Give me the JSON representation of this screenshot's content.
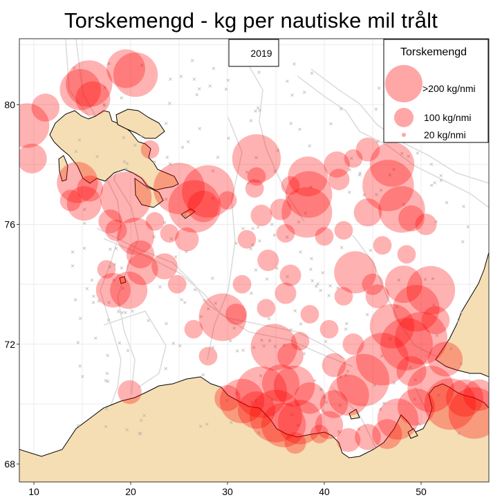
{
  "title": "Torskemengd - kg per nautiske mil trålt",
  "year_label": "2019",
  "legend": {
    "title": "Torskemengd",
    "items": [
      {
        "label": ">200 kg/nmi",
        "value": 200
      },
      {
        "label": "100 kg/nmi",
        "value": 100
      },
      {
        "label": "20 kg/nmi",
        "value": 20
      }
    ]
  },
  "colors": {
    "bubble": "#ff0000",
    "land": "#f5deb3",
    "depth_contour": "#d9d9d9",
    "grid": "#ebebeb",
    "station_marker": "#b0b0b0"
  },
  "chart_data": {
    "type": "map-bubble",
    "x_ticks": [
      "10",
      "20",
      "30",
      "40",
      "50"
    ],
    "y_ticks": [
      "68",
      "72",
      "76",
      "80"
    ],
    "xlim": [
      8.5,
      57
    ],
    "ylim": [
      67.4,
      82.2
    ],
    "points": [
      {
        "lon": 9.3,
        "lat": 79.3,
        "kgnmi": 180
      },
      {
        "lon": 11.2,
        "lat": 79.9,
        "kgnmi": 60
      },
      {
        "lon": 14.8,
        "lat": 80.5,
        "kgnmi": 150
      },
      {
        "lon": 15.7,
        "lat": 80.7,
        "kgnmi": 200
      },
      {
        "lon": 16.1,
        "lat": 80.2,
        "kgnmi": 100
      },
      {
        "lon": 19.5,
        "lat": 81.2,
        "kgnmi": 130
      },
      {
        "lon": 20.5,
        "lat": 81.0,
        "kgnmi": 180
      },
      {
        "lon": 9.8,
        "lat": 78.2,
        "kgnmi": 70
      },
      {
        "lon": 14.5,
        "lat": 77.4,
        "kgnmi": 150
      },
      {
        "lon": 15.8,
        "lat": 77.2,
        "kgnmi": 50
      },
      {
        "lon": 13.8,
        "lat": 76.8,
        "kgnmi": 30
      },
      {
        "lon": 15.2,
        "lat": 76.7,
        "kgnmi": 100
      },
      {
        "lon": 17.9,
        "lat": 76.1,
        "kgnmi": 40
      },
      {
        "lon": 19.5,
        "lat": 76.9,
        "kgnmi": 250
      },
      {
        "lon": 18.5,
        "lat": 75.8,
        "kgnmi": 30
      },
      {
        "lon": 20.5,
        "lat": 75.6,
        "kgnmi": 120
      },
      {
        "lon": 21.0,
        "lat": 75.0,
        "kgnmi": 60
      },
      {
        "lon": 21.2,
        "lat": 74.5,
        "kgnmi": 80
      },
      {
        "lon": 18.2,
        "lat": 73.8,
        "kgnmi": 100
      },
      {
        "lon": 19.8,
        "lat": 73.8,
        "kgnmi": 120
      },
      {
        "lon": 23.5,
        "lat": 74.6,
        "kgnmi": 50
      },
      {
        "lon": 25.0,
        "lat": 77.2,
        "kgnmi": 250
      },
      {
        "lon": 26.6,
        "lat": 76.6,
        "kgnmi": 280
      },
      {
        "lon": 28.0,
        "lat": 77.1,
        "kgnmi": 260
      },
      {
        "lon": 27.5,
        "lat": 76.6,
        "kgnmi": 80
      },
      {
        "lon": 25.8,
        "lat": 75.5,
        "kgnmi": 40
      },
      {
        "lon": 29.5,
        "lat": 72.9,
        "kgnmi": 210
      },
      {
        "lon": 30.9,
        "lat": 73.0,
        "kgnmi": 30
      },
      {
        "lon": 33.0,
        "lat": 78.2,
        "kgnmi": 220
      },
      {
        "lon": 33.0,
        "lat": 77.6,
        "kgnmi": 20
      },
      {
        "lon": 32.8,
        "lat": 77.2,
        "kgnmi": 20
      },
      {
        "lon": 33.5,
        "lat": 76.3,
        "kgnmi": 30
      },
      {
        "lon": 34.2,
        "lat": 74.8,
        "kgnmi": 30
      },
      {
        "lon": 35.5,
        "lat": 76.5,
        "kgnmi": 30
      },
      {
        "lon": 36.5,
        "lat": 77.3,
        "kgnmi": 20
      },
      {
        "lon": 38.4,
        "lat": 77.0,
        "kgnmi": 200
      },
      {
        "lon": 38.2,
        "lat": 76.4,
        "kgnmi": 240
      },
      {
        "lon": 38.3,
        "lat": 77.6,
        "kgnmi": 140
      },
      {
        "lon": 36.5,
        "lat": 74.3,
        "kgnmi": 30
      },
      {
        "lon": 36.0,
        "lat": 73.7,
        "kgnmi": 30
      },
      {
        "lon": 37.5,
        "lat": 72.1,
        "kgnmi": 20
      },
      {
        "lon": 41.3,
        "lat": 78.0,
        "kgnmi": 50
      },
      {
        "lon": 41.5,
        "lat": 77.5,
        "kgnmi": 30
      },
      {
        "lon": 43.0,
        "lat": 78.2,
        "kgnmi": 20
      },
      {
        "lon": 44.5,
        "lat": 78.5,
        "kgnmi": 40
      },
      {
        "lon": 46.6,
        "lat": 77.3,
        "kgnmi": 250
      },
      {
        "lon": 47.0,
        "lat": 78.0,
        "kgnmi": 180
      },
      {
        "lon": 48.0,
        "lat": 76.5,
        "kgnmi": 200
      },
      {
        "lon": 49.0,
        "lat": 76.2,
        "kgnmi": 50
      },
      {
        "lon": 50.5,
        "lat": 76.0,
        "kgnmi": 30
      },
      {
        "lon": 44.5,
        "lat": 76.4,
        "kgnmi": 60
      },
      {
        "lon": 43.2,
        "lat": 74.4,
        "kgnmi": 160
      },
      {
        "lon": 45.0,
        "lat": 74.0,
        "kgnmi": 30
      },
      {
        "lon": 45.5,
        "lat": 73.6,
        "kgnmi": 40
      },
      {
        "lon": 48.2,
        "lat": 74.0,
        "kgnmi": 120
      },
      {
        "lon": 49.5,
        "lat": 73.2,
        "kgnmi": 200
      },
      {
        "lon": 51.0,
        "lat": 73.8,
        "kgnmi": 220
      },
      {
        "lon": 51.5,
        "lat": 72.8,
        "kgnmi": 60
      },
      {
        "lon": 47.0,
        "lat": 72.6,
        "kgnmi": 180
      },
      {
        "lon": 48.5,
        "lat": 72.0,
        "kgnmi": 300
      },
      {
        "lon": 50.0,
        "lat": 72.2,
        "kgnmi": 280
      },
      {
        "lon": 46.0,
        "lat": 71.5,
        "kgnmi": 320
      },
      {
        "lon": 44.0,
        "lat": 70.8,
        "kgnmi": 320
      },
      {
        "lon": 42.5,
        "lat": 70.3,
        "kgnmi": 150
      },
      {
        "lon": 41.0,
        "lat": 71.3,
        "kgnmi": 40
      },
      {
        "lon": 41.0,
        "lat": 70.0,
        "kgnmi": 60
      },
      {
        "lon": 40.5,
        "lat": 69.3,
        "kgnmi": 60
      },
      {
        "lon": 38.5,
        "lat": 70.2,
        "kgnmi": 80
      },
      {
        "lon": 34.8,
        "lat": 71.9,
        "kgnmi": 200
      },
      {
        "lon": 36.5,
        "lat": 71.6,
        "kgnmi": 50
      },
      {
        "lon": 35.5,
        "lat": 70.7,
        "kgnmi": 120
      },
      {
        "lon": 36.9,
        "lat": 70.6,
        "kgnmi": 150
      },
      {
        "lon": 33.5,
        "lat": 70.4,
        "kgnmi": 250
      },
      {
        "lon": 31.5,
        "lat": 70.1,
        "kgnmi": 180
      },
      {
        "lon": 35.0,
        "lat": 69.6,
        "kgnmi": 300
      },
      {
        "lon": 37.5,
        "lat": 69.4,
        "kgnmi": 180
      },
      {
        "lon": 35.8,
        "lat": 69.3,
        "kgnmi": 180
      },
      {
        "lon": 33.0,
        "lat": 69.8,
        "kgnmi": 120
      },
      {
        "lon": 30.0,
        "lat": 70.2,
        "kgnmi": 50
      },
      {
        "lon": 37.0,
        "lat": 68.7,
        "kgnmi": 30
      },
      {
        "lon": 39.5,
        "lat": 69.0,
        "kgnmi": 20
      },
      {
        "lon": 42.5,
        "lat": 68.8,
        "kgnmi": 40
      },
      {
        "lon": 44.5,
        "lat": 68.9,
        "kgnmi": 50
      },
      {
        "lon": 46.5,
        "lat": 69.0,
        "kgnmi": 70
      },
      {
        "lon": 47.6,
        "lat": 69.5,
        "kgnmi": 150
      },
      {
        "lon": 51.0,
        "lat": 70.5,
        "kgnmi": 200
      },
      {
        "lon": 53.0,
        "lat": 70.0,
        "kgnmi": 250
      },
      {
        "lon": 54.5,
        "lat": 70.2,
        "kgnmi": 120
      },
      {
        "lon": 55.5,
        "lat": 69.7,
        "kgnmi": 250
      },
      {
        "lon": 56.0,
        "lat": 70.3,
        "kgnmi": 80
      },
      {
        "lon": 49.5,
        "lat": 69.9,
        "kgnmi": 120
      },
      {
        "lon": 52.5,
        "lat": 71.5,
        "kgnmi": 100
      },
      {
        "lon": 49.0,
        "lat": 71.1,
        "kgnmi": 70
      },
      {
        "lon": 19.9,
        "lat": 70.4,
        "kgnmi": 40
      },
      {
        "lon": 17.5,
        "lat": 74.5,
        "kgnmi": 20
      },
      {
        "lon": 22.5,
        "lat": 76.1,
        "kgnmi": 20
      },
      {
        "lon": 24.8,
        "lat": 74.0,
        "kgnmi": 20
      },
      {
        "lon": 26.5,
        "lat": 72.5,
        "kgnmi": 20
      },
      {
        "lon": 28.0,
        "lat": 71.6,
        "kgnmi": 20
      },
      {
        "lon": 40.0,
        "lat": 75.6,
        "kgnmi": 20
      },
      {
        "lon": 42.0,
        "lat": 75.8,
        "kgnmi": 20
      },
      {
        "lon": 31.5,
        "lat": 74.0,
        "kgnmi": 20
      },
      {
        "lon": 32.0,
        "lat": 75.5,
        "kgnmi": 20
      },
      {
        "lon": 38.5,
        "lat": 73.0,
        "kgnmi": 20
      },
      {
        "lon": 40.5,
        "lat": 72.5,
        "kgnmi": 20
      },
      {
        "lon": 43.0,
        "lat": 72.0,
        "kgnmi": 30
      },
      {
        "lon": 42.0,
        "lat": 73.6,
        "kgnmi": 20
      },
      {
        "lon": 46.0,
        "lat": 75.3,
        "kgnmi": 20
      },
      {
        "lon": 48.5,
        "lat": 75.0,
        "kgnmi": 20
      },
      {
        "lon": 34.0,
        "lat": 73.2,
        "kgnmi": 20
      },
      {
        "lon": 36.0,
        "lat": 75.7,
        "kgnmi": 20
      },
      {
        "lon": 30.0,
        "lat": 76.8,
        "kgnmi": 20
      },
      {
        "lon": 22.0,
        "lat": 78.5,
        "kgnmi": 20
      },
      {
        "lon": 24.0,
        "lat": 75.7,
        "kgnmi": 20
      }
    ]
  }
}
